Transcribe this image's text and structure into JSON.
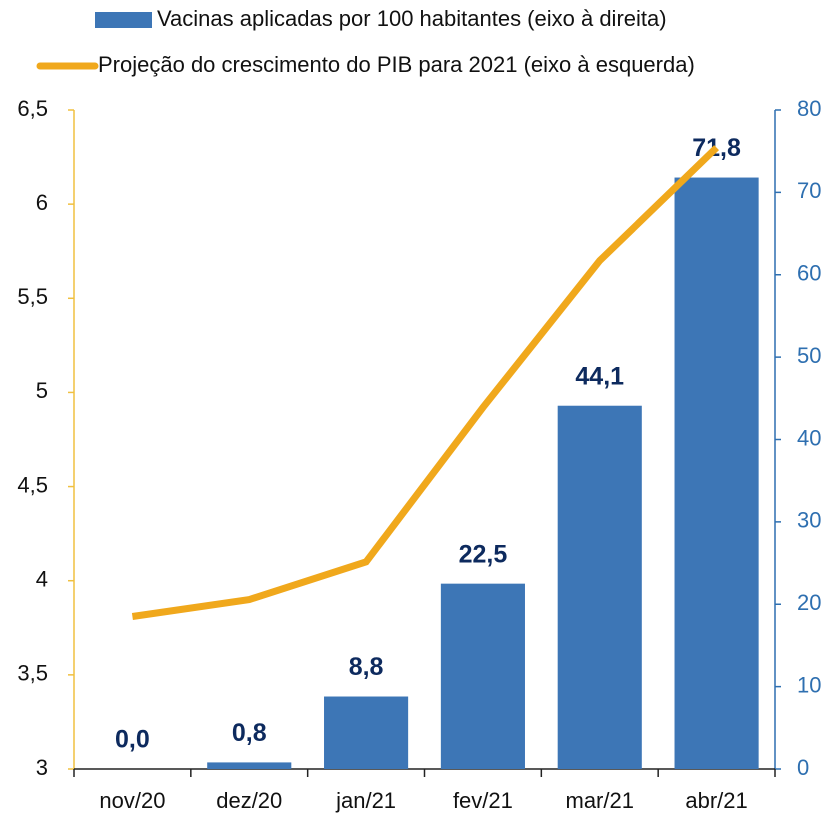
{
  "chart_data": {
    "type": "bar_line",
    "categories": [
      "nov/20",
      "dez/20",
      "jan/21",
      "fev/21",
      "mar/21",
      "abr/21"
    ],
    "series": [
      {
        "name": "Vacinas aplicadas por 100 habitantes (eixo à direita)",
        "type": "bar",
        "axis": "y2",
        "color": "#3d76b6",
        "values": [
          0.0,
          0.8,
          8.8,
          22.5,
          44.1,
          71.8
        ],
        "value_labels": [
          "0,0",
          "0,8",
          "8,8",
          "22,5",
          "44,1",
          "71,8"
        ]
      },
      {
        "name": "Projeção do crescimento do PIB para 2021 (eixo à esquerda)",
        "type": "line",
        "color": "#f0a81c",
        "values": [
          3.81,
          3.9,
          4.1,
          4.92,
          5.7,
          6.3
        ]
      }
    ],
    "ylim": [
      3,
      6.5
    ],
    "yticks": [
      3,
      {
        "value": 3.5,
        "label": "3,5"
      },
      4,
      {
        "value": 4.5,
        "label": "4,5"
      },
      5,
      {
        "value": 5.5,
        "label": "5,5"
      },
      6,
      {
        "value": 6.5,
        "label": "6,5"
      }
    ],
    "y2lim": [
      0,
      80
    ],
    "y2ticks": [
      0,
      10,
      20,
      30,
      40,
      50,
      60,
      70,
      80
    ]
  }
}
